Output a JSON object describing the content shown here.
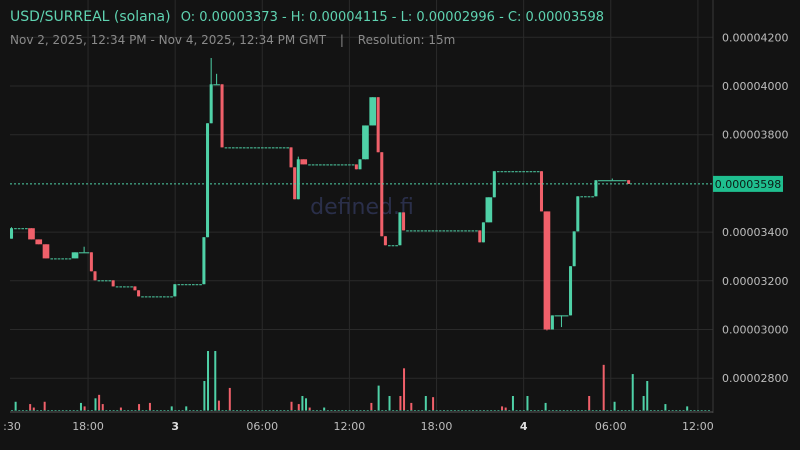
{
  "header": {
    "pair": "USD/SURREAL (solana)",
    "ohlc": "O: 0.00003373 - H: 0.00004115 - L: 0.00002996 - C: 0.00003598",
    "range": "Nov 2, 2025, 12:34 PM - Nov 4, 2025, 12:34 PM GMT",
    "separator": "|",
    "resolution": "Resolution: 15m"
  },
  "watermark": "defined.fi",
  "colors": {
    "up": "#4fd1a7",
    "down": "#f0606a",
    "grid": "#2a2a2a",
    "text": "#bdbdbd",
    "bg": "#131313"
  },
  "chart_data": {
    "type": "candlestick",
    "title": "USD/SURREAL (solana)",
    "price_unit": "1e-8 USD",
    "ylim": [
      2660,
      4300
    ],
    "y_ticks": [
      {
        "v": 4200,
        "label": "0.00004200"
      },
      {
        "v": 4000,
        "label": "0.00004000"
      },
      {
        "v": 3800,
        "label": "0.00003800"
      },
      {
        "v": 3400,
        "label": "0.00003400"
      },
      {
        "v": 3200,
        "label": "0.00003200"
      },
      {
        "v": 3000,
        "label": "0.00003000"
      },
      {
        "v": 2800,
        "label": "0.00002800"
      }
    ],
    "current_price": {
      "v": 3598,
      "label": "0.00003598"
    },
    "x_ticks": [
      {
        "bar": -1,
        "label": ":30",
        "bold": false
      },
      {
        "bar": 21,
        "label": "18:00",
        "bold": false
      },
      {
        "bar": 45,
        "label": "3",
        "bold": true
      },
      {
        "bar": 69,
        "label": "06:00",
        "bold": false
      },
      {
        "bar": 93,
        "label": "12:00",
        "bold": false
      },
      {
        "bar": 117,
        "label": "18:00",
        "bold": false
      },
      {
        "bar": 141,
        "label": "4",
        "bold": true
      },
      {
        "bar": 165,
        "label": "06:00",
        "bold": false
      },
      {
        "bar": 189,
        "label": "12:00",
        "bold": false
      }
    ],
    "candles_note": "[open, high, low, close, bars_spanned]",
    "candles": [
      [
        3373,
        3420,
        3373,
        3416,
        1
      ],
      [
        3416,
        3416,
        3416,
        3416,
        4
      ],
      [
        3416,
        3416,
        3370,
        3370,
        2
      ],
      [
        3370,
        3370,
        3350,
        3350,
        2
      ],
      [
        3350,
        3350,
        3292,
        3292,
        2
      ],
      [
        3292,
        3292,
        3292,
        3292,
        6
      ],
      [
        3292,
        3317,
        3292,
        3317,
        2
      ],
      [
        3317,
        3340,
        3317,
        3317,
        3
      ],
      [
        3317,
        3317,
        3239,
        3239,
        1
      ],
      [
        3239,
        3239,
        3202,
        3202,
        1
      ],
      [
        3202,
        3202,
        3202,
        3202,
        4
      ],
      [
        3202,
        3202,
        3177,
        3177,
        1
      ],
      [
        3177,
        3177,
        3177,
        3177,
        5
      ],
      [
        3177,
        3177,
        3161,
        3161,
        1
      ],
      [
        3161,
        3161,
        3136,
        3136,
        1
      ],
      [
        3136,
        3136,
        3136,
        3136,
        9
      ],
      [
        3136,
        3186,
        3136,
        3186,
        1
      ],
      [
        3186,
        3186,
        3186,
        3186,
        7
      ],
      [
        3186,
        3379,
        3186,
        3379,
        1
      ],
      [
        3379,
        3847,
        3379,
        3847,
        1
      ],
      [
        3847,
        4115,
        3847,
        4007,
        1
      ],
      [
        4007,
        4050,
        4007,
        4007,
        2
      ],
      [
        4007,
        4007,
        3748,
        3748,
        1
      ],
      [
        3748,
        3748,
        3748,
        3748,
        18
      ],
      [
        3748,
        3748,
        3666,
        3666,
        1
      ],
      [
        3666,
        3666,
        3535,
        3535,
        1
      ],
      [
        3535,
        3710,
        3535,
        3699,
        1
      ],
      [
        3699,
        3699,
        3678,
        3678,
        2
      ],
      [
        3678,
        3678,
        3678,
        3678,
        13
      ],
      [
        3678,
        3678,
        3658,
        3658,
        1
      ],
      [
        3658,
        3699,
        3658,
        3699,
        1
      ],
      [
        3699,
        3838,
        3699,
        3838,
        2
      ],
      [
        3838,
        3954,
        3838,
        3954,
        2
      ],
      [
        3954,
        3954,
        3728,
        3728,
        1
      ],
      [
        3728,
        3728,
        3383,
        3383,
        1
      ],
      [
        3383,
        3383,
        3346,
        3346,
        1
      ],
      [
        3346,
        3346,
        3346,
        3346,
        3
      ],
      [
        3346,
        3481,
        3346,
        3481,
        1
      ],
      [
        3481,
        3481,
        3407,
        3407,
        1
      ],
      [
        3407,
        3407,
        3407,
        3407,
        20
      ],
      [
        3407,
        3407,
        3358,
        3358,
        1
      ],
      [
        3358,
        3440,
        3358,
        3440,
        1
      ],
      [
        3440,
        3543,
        3440,
        3543,
        2
      ],
      [
        3543,
        3650,
        3543,
        3650,
        1
      ],
      [
        3650,
        3650,
        3650,
        3650,
        12
      ],
      [
        3650,
        3650,
        3485,
        3485,
        1
      ],
      [
        3485,
        3485,
        2996,
        3000,
        2
      ],
      [
        3000,
        3058,
        3000,
        3058,
        1
      ],
      [
        3058,
        3058,
        3010,
        3058,
        4
      ],
      [
        3058,
        3260,
        3058,
        3260,
        1
      ],
      [
        3260,
        3403,
        3260,
        3403,
        1
      ],
      [
        3403,
        3547,
        3403,
        3547,
        1
      ],
      [
        3547,
        3547,
        3547,
        3547,
        4
      ],
      [
        3547,
        3613,
        3547,
        3613,
        1
      ],
      [
        3613,
        3620,
        3613,
        3613,
        8
      ],
      [
        3613,
        3613,
        3598,
        3598,
        1
      ]
    ],
    "volume_note": "[bar_index, relative_volume, direction]",
    "volume": [
      [
        1,
        8,
        "up"
      ],
      [
        5,
        6,
        "down"
      ],
      [
        6,
        3,
        "down"
      ],
      [
        9,
        8,
        "down"
      ],
      [
        19,
        7,
        "up"
      ],
      [
        20,
        4,
        "down"
      ],
      [
        23,
        11,
        "up"
      ],
      [
        24,
        14,
        "down"
      ],
      [
        25,
        6,
        "down"
      ],
      [
        30,
        3,
        "down"
      ],
      [
        35,
        6,
        "down"
      ],
      [
        38,
        7,
        "down"
      ],
      [
        44,
        4,
        "up"
      ],
      [
        48,
        4,
        "up"
      ],
      [
        53,
        26,
        "up"
      ],
      [
        54,
        52,
        "up"
      ],
      [
        56,
        52,
        "up"
      ],
      [
        57,
        9,
        "down"
      ],
      [
        60,
        20,
        "down"
      ],
      [
        77,
        8,
        "down"
      ],
      [
        79,
        6,
        "down"
      ],
      [
        80,
        13,
        "up"
      ],
      [
        81,
        11,
        "up"
      ],
      [
        82,
        3,
        "down"
      ],
      [
        86,
        3,
        "up"
      ],
      [
        99,
        7,
        "down"
      ],
      [
        101,
        22,
        "up"
      ],
      [
        104,
        13,
        "up"
      ],
      [
        107,
        13,
        "down"
      ],
      [
        108,
        37,
        "down"
      ],
      [
        110,
        7,
        "down"
      ],
      [
        114,
        13,
        "up"
      ],
      [
        116,
        12,
        "down"
      ],
      [
        135,
        4,
        "down"
      ],
      [
        136,
        3,
        "down"
      ],
      [
        138,
        13,
        "up"
      ],
      [
        142,
        13,
        "up"
      ],
      [
        147,
        7,
        "up"
      ],
      [
        159,
        13,
        "down"
      ],
      [
        163,
        40,
        "down"
      ],
      [
        166,
        8,
        "up"
      ],
      [
        171,
        32,
        "up"
      ],
      [
        174,
        13,
        "up"
      ],
      [
        175,
        26,
        "up"
      ],
      [
        180,
        6,
        "up"
      ],
      [
        186,
        4,
        "up"
      ]
    ]
  }
}
